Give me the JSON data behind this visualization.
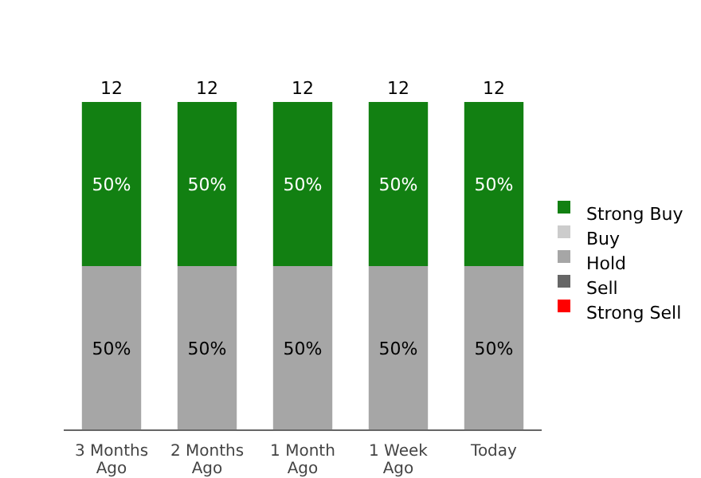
{
  "chart_data": {
    "type": "bar",
    "stacked": true,
    "categories": [
      "3 Months Ago",
      "2 Months Ago",
      "1 Month Ago",
      "1 Week Ago",
      "Today"
    ],
    "series": [
      {
        "name": "Strong Sell",
        "color": "#ff0000",
        "values": [
          0,
          0,
          0,
          0,
          0
        ]
      },
      {
        "name": "Sell",
        "color": "#666666",
        "values": [
          0,
          0,
          0,
          0,
          0
        ]
      },
      {
        "name": "Hold",
        "color": "#a6a6a6",
        "values": [
          50,
          50,
          50,
          50,
          50
        ],
        "value_labels": [
          "50%",
          "50%",
          "50%",
          "50%",
          "50%"
        ]
      },
      {
        "name": "Buy",
        "color": "#cccccc",
        "values": [
          0,
          0,
          0,
          0,
          0
        ]
      },
      {
        "name": "Strong Buy",
        "color": "#128012",
        "values": [
          50,
          50,
          50,
          50,
          50
        ],
        "value_labels": [
          "50%",
          "50%",
          "50%",
          "50%",
          "50%"
        ]
      }
    ],
    "annotations": [
      {
        "text": "12",
        "x": "3 Months Ago",
        "y": 100
      },
      {
        "text": "12",
        "x": "2 Months Ago",
        "y": 100
      },
      {
        "text": "12",
        "x": "1 Month Ago",
        "y": 100
      },
      {
        "text": "12",
        "x": "1 Week Ago",
        "y": 100
      },
      {
        "text": "12",
        "x": "Today",
        "y": 100
      }
    ],
    "legend": "right"
  }
}
